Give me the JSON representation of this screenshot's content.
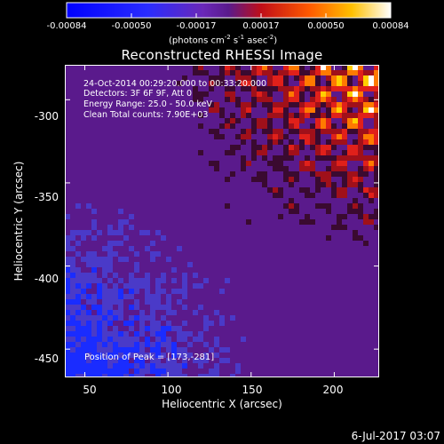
{
  "colorbar": {
    "ticks": [
      "-0.00084",
      "-0.00050",
      "-0.00017",
      "0.00017",
      "0.00050",
      "0.00084"
    ],
    "units_text": "(photons cm",
    "units_exp1": "-2",
    "units_mid1": " s",
    "units_exp2": "-1",
    "units_mid2": " asec",
    "units_exp3": "-2",
    "units_end": ")"
  },
  "title": "Reconstructed RHESSI Image",
  "info": {
    "line1": "24-Oct-2014 00:29:20.000 to 00:33:20.000",
    "line2": "Detectors: 3F 6F 9F, Att 0",
    "line3": "Energy Range: 25.0 - 50.0 keV",
    "line4": "Clean     Total counts: 7.90E+03"
  },
  "peak_text": "Position of Peak = [173,-281]",
  "axes": {
    "xlabel": "Heliocentric X (arcsec)",
    "ylabel": "Heliocentric Y (arcsec)",
    "xticks": [
      "50",
      "100",
      "150",
      "200"
    ],
    "yticks": [
      "-300",
      "-350",
      "-400",
      "-450"
    ],
    "xlim": [
      38,
      227
    ],
    "ylim": [
      -467,
      -279
    ]
  },
  "datestamp": "6-Jul-2017 03:07",
  "colors": {
    "negative": "#1a2cff",
    "background": "#5a1a8c",
    "positive_low": "#d0141e",
    "positive_high": "#ffffff"
  }
}
